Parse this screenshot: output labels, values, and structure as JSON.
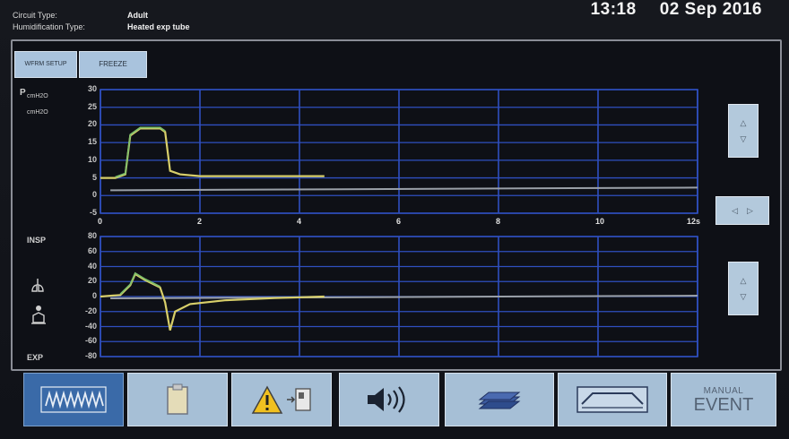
{
  "header": {
    "circuit_label": "Circuit Type:",
    "circuit_value": "Adult",
    "humid_label": "Humidification Type:",
    "humid_value": "Heated exp tube",
    "time": "13:18",
    "date": "02 Sep 2016"
  },
  "top_buttons": {
    "setup_label": "WFRM SETUP",
    "freeze_label": "FREEZE"
  },
  "top_chart": {
    "label_line1": "P",
    "label_line2": "cmH2O",
    "label_line3": "cmH2O",
    "y_ticks": [
      "30",
      "25",
      "20",
      "15",
      "10",
      "5",
      "0",
      "-5"
    ],
    "x_ticks": [
      "0",
      "2",
      "4",
      "6",
      "8",
      "10",
      "12s"
    ]
  },
  "bottom_chart": {
    "label_top": "INSP",
    "label_bottom": "EXP",
    "y_ticks": [
      "80",
      "60",
      "40",
      "20",
      "0",
      "-20",
      "-40",
      "-60",
      "-80"
    ]
  },
  "toolbar": {
    "manual_line1": "MANUAL",
    "manual_line2": "EVENT"
  },
  "icons": [
    "waveform-icon",
    "clipboard-icon",
    "alarm-warning-icon",
    "speaker-volume-icon",
    "stacked-layers-icon",
    "trend-icon"
  ],
  "colors": {
    "grid": "#2f4fc0",
    "trace_yellow": "#d8cf6a",
    "trace_green": "#7fbf6a",
    "baseline": "#9aa0a8",
    "button": "#a6bfd6",
    "button_active": "#3a6aa8"
  },
  "chart_data": [
    {
      "type": "line",
      "x": [
        0,
        0.3,
        0.5,
        0.6,
        0.8,
        1.2,
        1.3,
        1.4,
        1.6,
        2.0,
        3.0,
        4.0,
        4.5
      ],
      "series": [
        {
          "values": [
            5,
            5,
            6,
            17,
            19,
            19,
            18,
            7,
            6,
            5.5,
            5.5,
            5.5,
            5.5
          ]
        }
      ],
      "xlim": [
        0,
        12
      ],
      "ylim": [
        -5,
        30
      ]
    },
    {
      "type": "line",
      "x": [
        0,
        0.4,
        0.6,
        0.7,
        0.9,
        1.2,
        1.3,
        1.4,
        1.5,
        1.8,
        2.5,
        3.5,
        4.5
      ],
      "series": [
        {
          "values": [
            0,
            2,
            15,
            30,
            22,
            12,
            -8,
            -45,
            -20,
            -10,
            -5,
            -2,
            0
          ]
        }
      ],
      "xlim": [
        0,
        12
      ],
      "ylim": [
        -80,
        80
      ]
    }
  ]
}
